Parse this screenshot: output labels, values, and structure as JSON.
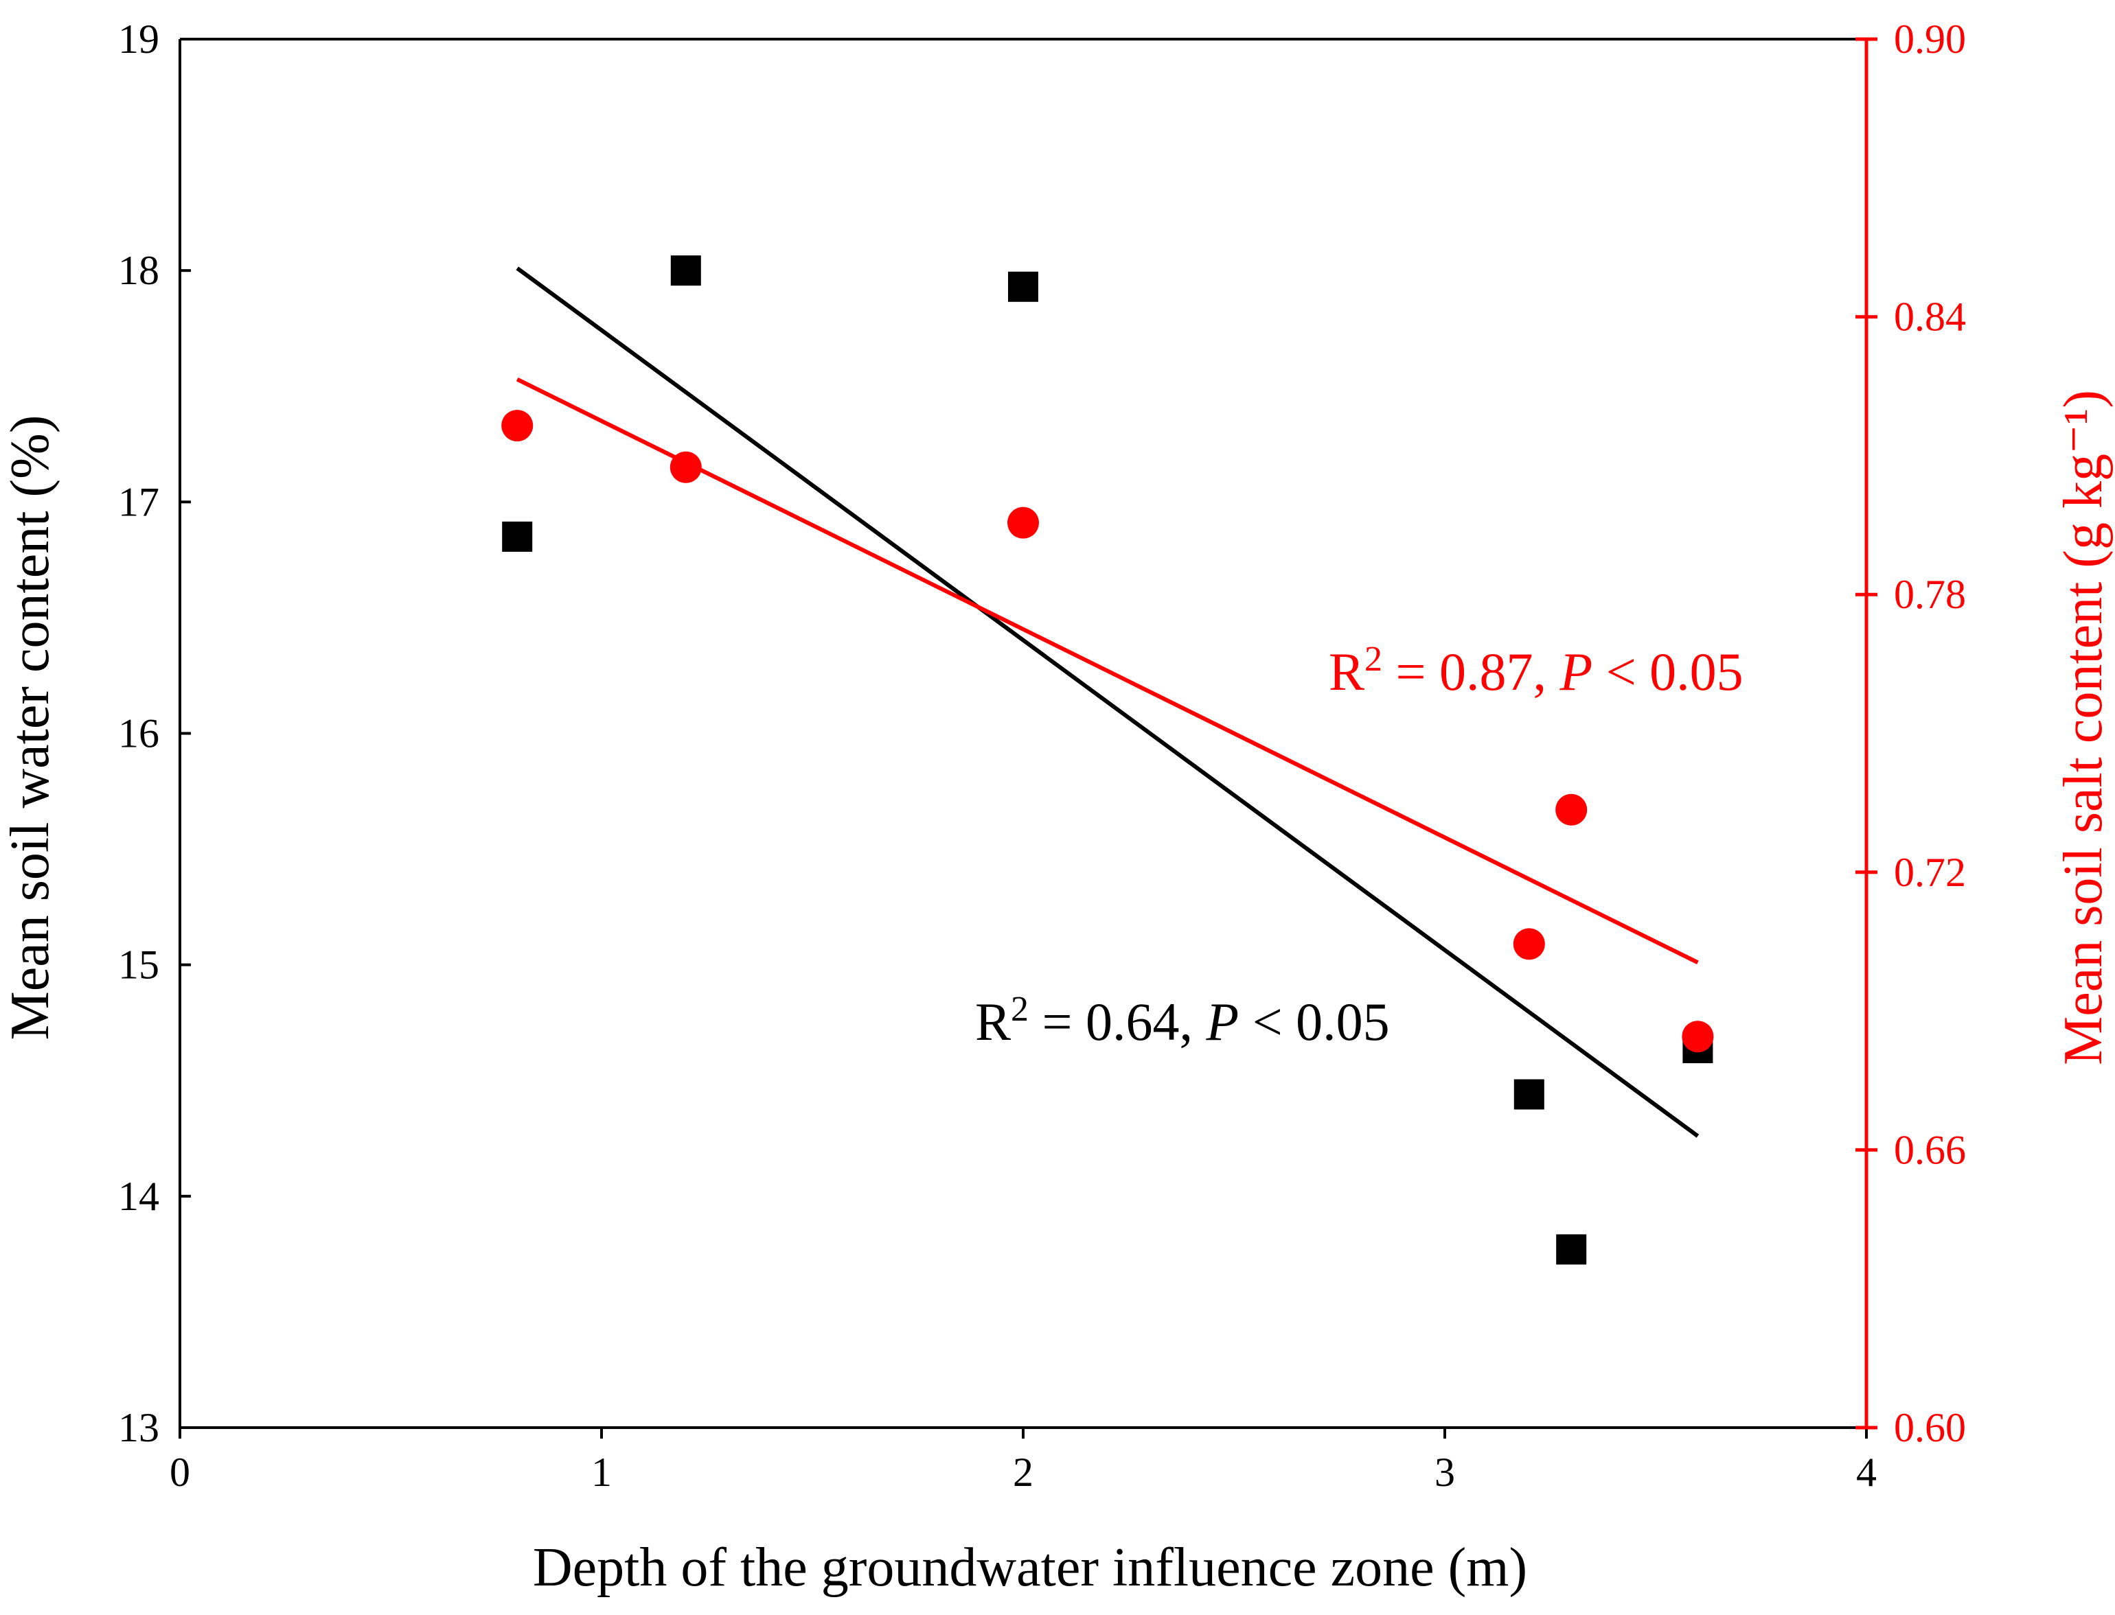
{
  "chart_data": {
    "type": "scatter",
    "title": "",
    "xlabel": "Depth of the groundwater influence zone (m)",
    "ylabel_left": "Mean soil water content (%)",
    "ylabel_right": "Mean soil salt content (g kg⁻¹)",
    "xlim": [
      0,
      4
    ],
    "ylim_left": [
      13,
      19
    ],
    "ylim_right": [
      0.6,
      0.9
    ],
    "x_ticks": [
      0,
      1,
      2,
      3,
      4
    ],
    "x_tick_labels": [
      "0",
      "1",
      "2",
      "3",
      "4"
    ],
    "y_left_ticks": [
      13,
      14,
      15,
      16,
      17,
      18,
      19
    ],
    "y_left_tick_labels": [
      "13",
      "14",
      "15",
      "16",
      "17",
      "18",
      "19"
    ],
    "y_right_ticks": [
      0.6,
      0.66,
      0.72,
      0.78,
      0.84,
      0.9
    ],
    "y_right_tick_labels": [
      "0.60",
      "0.66",
      "0.72",
      "0.78",
      "0.84",
      "0.90"
    ],
    "grid": false,
    "series": [
      {
        "name": "Mean soil water content",
        "axis": "left",
        "marker": "square",
        "color": "#000000",
        "x": [
          0.8,
          1.2,
          2.0,
          3.2,
          3.3,
          3.6
        ],
        "y": [
          16.85,
          18.0,
          17.93,
          14.44,
          13.77,
          14.64
        ],
        "fit": {
          "x": [
            0.8,
            3.6
          ],
          "y": [
            18.01,
            14.26
          ]
        }
      },
      {
        "name": "Mean soil salt content",
        "axis": "right",
        "marker": "circle",
        "color": "#ff0000",
        "x": [
          0.8,
          1.2,
          2.0,
          3.2,
          3.3,
          3.6
        ],
        "y": [
          0.8165,
          0.8075,
          0.7955,
          0.7045,
          0.7335,
          0.6845
        ],
        "fit": {
          "x": [
            0.8,
            3.6
          ],
          "y": [
            0.8265,
            0.7005
          ]
        }
      }
    ],
    "annotations": [
      {
        "series": 1,
        "base": "R",
        "sup": "2",
        "text": " = 0.87, ",
        "italic": "P",
        "tail": " < 0.05",
        "color": "#ff0000"
      },
      {
        "series": 0,
        "base": "R",
        "sup": "2",
        "text": " = 0.64, ",
        "italic": "P",
        "tail": " < 0.05",
        "color": "#000000"
      }
    ]
  }
}
